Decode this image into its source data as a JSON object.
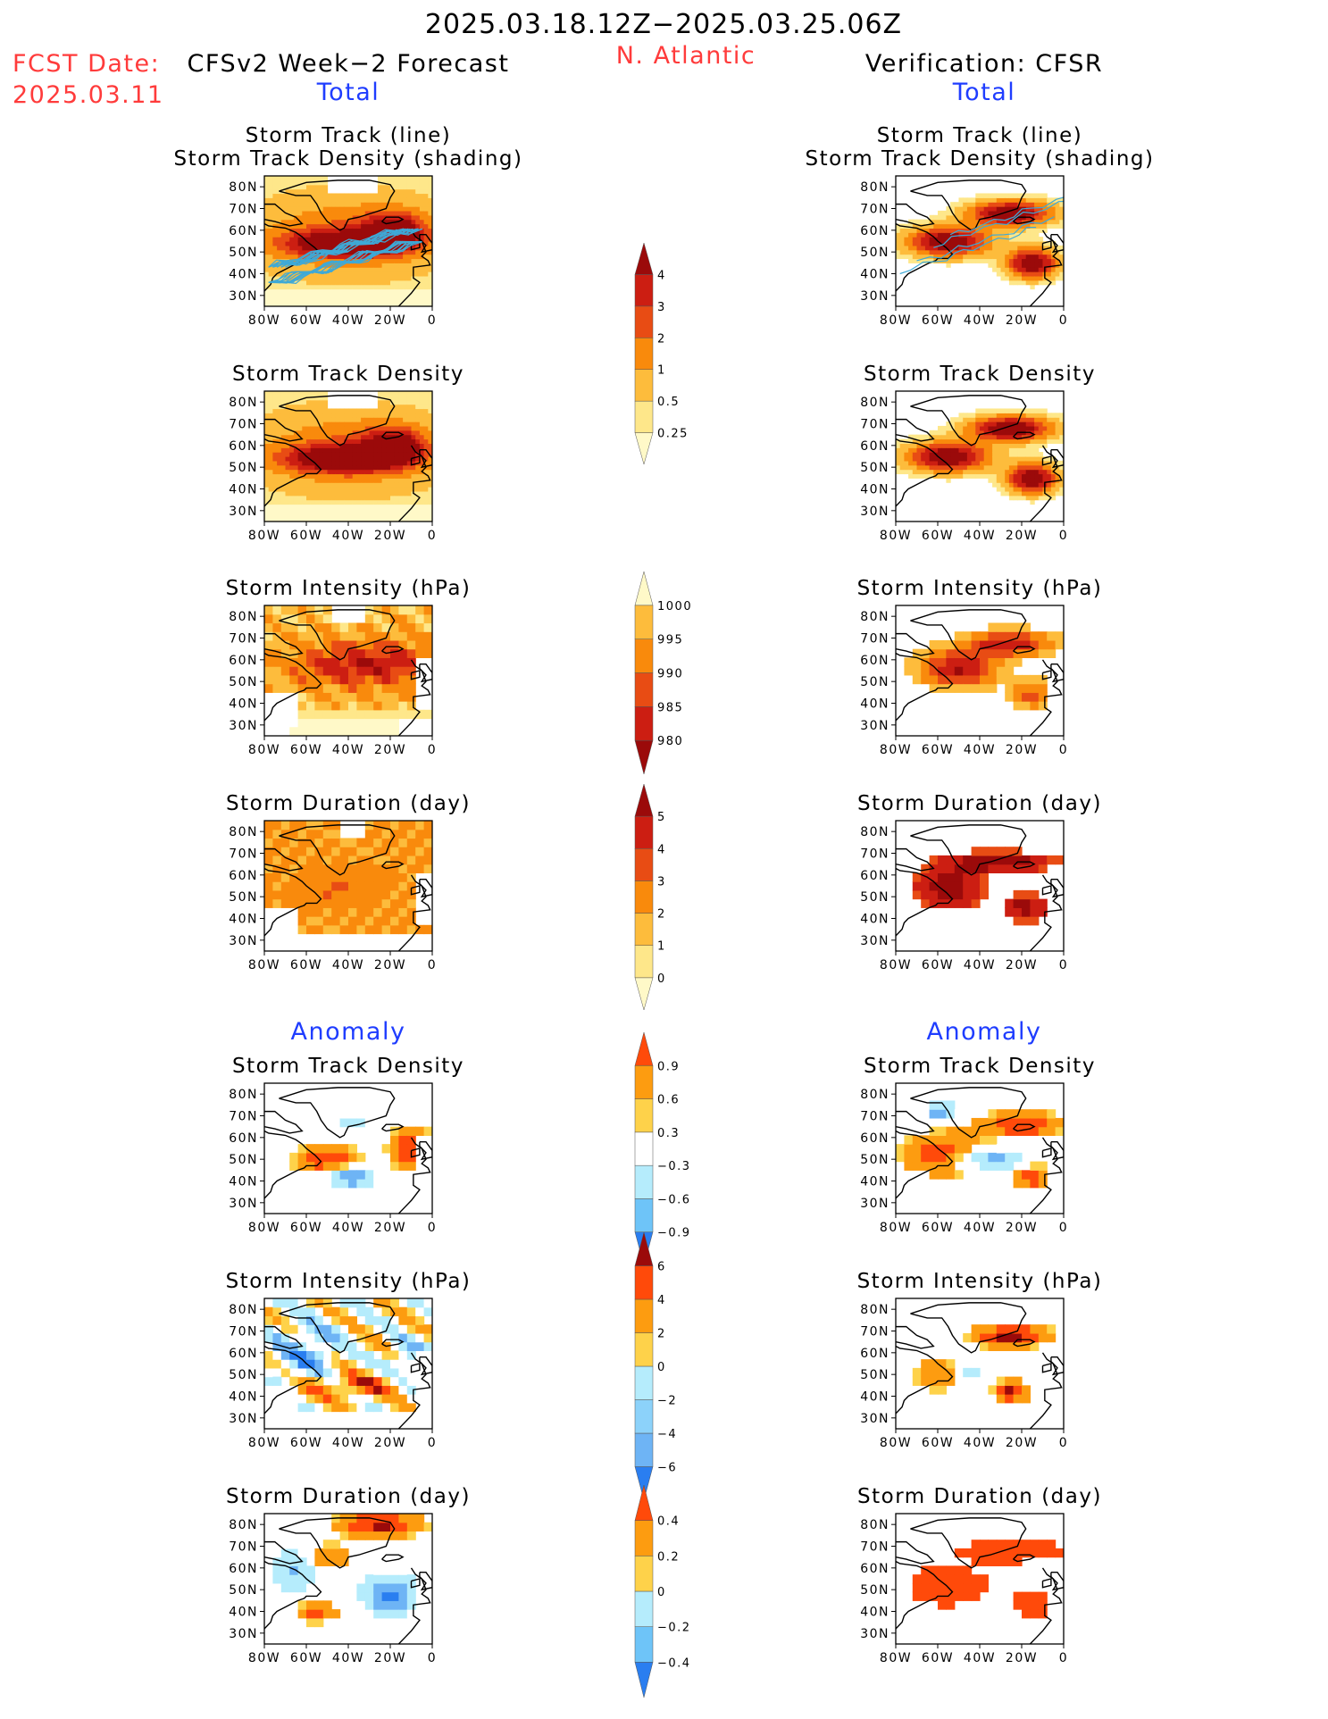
{
  "header": {
    "date_range": "2025.03.18.12Z−2025.03.25.06Z",
    "fcst_label": "FCST Date:",
    "fcst_date": "2025.03.11",
    "left_title": "CFSv2 Week−2 Forecast",
    "region": "N. Atlantic",
    "right_title": "Verification: CFSR",
    "total_left": "Total",
    "total_right": "Total",
    "anomaly_left": "Anomaly",
    "anomaly_right": "Anomaly"
  },
  "colors": {
    "title_red": "#ff3b3b",
    "title_blue": "#1f3dff",
    "track_line": "#3fa9d6"
  },
  "chart_data": {
    "type": "heatmap",
    "region": "N. Atlantic",
    "axes": {
      "xticks": [
        "80W",
        "60W",
        "40W",
        "20W",
        "0"
      ],
      "yticks": [
        "80N",
        "70N",
        "60N",
        "50N",
        "40N",
        "30N"
      ],
      "lon_range": [
        -80,
        0
      ],
      "lat_range": [
        25,
        85
      ]
    },
    "panel_titles": {
      "track": [
        "Storm Track (line)",
        "Storm Track Density (shading)"
      ],
      "density": "Storm Track Density",
      "intensity": "Storm Intensity (hPa)",
      "duration": "Storm Duration (day)"
    },
    "colorbars": [
      {
        "name": "density",
        "levels": [
          "4",
          "3",
          "2",
          "1",
          "0.5",
          "0.25"
        ],
        "colors": [
          "#9b0a0a",
          "#cc1e12",
          "#e84c14",
          "#f98a0c",
          "#fdbc3c",
          "#fee78a",
          "#fff9c8"
        ]
      },
      {
        "name": "intensity",
        "levels": [
          "1000",
          "995",
          "990",
          "985",
          "980"
        ],
        "colors": [
          "#fff9c8",
          "#fdbc3c",
          "#f98a0c",
          "#e84c14",
          "#cc1e12",
          "#9b0a0a"
        ]
      },
      {
        "name": "duration",
        "levels": [
          "5",
          "4",
          "3",
          "2",
          "1",
          "0"
        ],
        "colors": [
          "#9b0a0a",
          "#cc1e12",
          "#e84c14",
          "#f98a0c",
          "#fdbc3c",
          "#fee78a",
          "#fff9c8"
        ]
      },
      {
        "name": "density_anomaly",
        "levels": [
          "0.9",
          "0.6",
          "0.3",
          "−0.3",
          "−0.6",
          "−0.9"
        ],
        "colors": [
          "#ff4a0a",
          "#fd9c10",
          "#fed24a",
          "#ffffff",
          "#b5ecfc",
          "#6ec4f8",
          "#2a7ef0"
        ]
      },
      {
        "name": "intensity_anomaly",
        "levels": [
          "6",
          "4",
          "2",
          "0",
          "−2",
          "−4",
          "−6"
        ],
        "colors": [
          "#9b0a0a",
          "#ff4a0a",
          "#fd9c10",
          "#fed24a",
          "#b5ecfc",
          "#8cd2fa",
          "#6eb4f5",
          "#2a7ef0"
        ]
      },
      {
        "name": "duration_anomaly",
        "levels": [
          "0.4",
          "0.2",
          "0",
          "−0.2",
          "−0.4"
        ],
        "colors": [
          "#ff4a0a",
          "#fd9c10",
          "#fed24a",
          "#b5ecfc",
          "#6ec4f8",
          "#2a7ef0"
        ]
      }
    ],
    "panels": [
      {
        "side": "forecast",
        "field": "track+density"
      },
      {
        "side": "forecast",
        "field": "density"
      },
      {
        "side": "forecast",
        "field": "intensity"
      },
      {
        "side": "forecast",
        "field": "duration"
      },
      {
        "side": "forecast",
        "field": "density_anomaly"
      },
      {
        "side": "forecast",
        "field": "intensity_anomaly"
      },
      {
        "side": "forecast",
        "field": "duration_anomaly"
      },
      {
        "side": "verification",
        "field": "track+density"
      },
      {
        "side": "verification",
        "field": "density"
      },
      {
        "side": "verification",
        "field": "intensity"
      },
      {
        "side": "verification",
        "field": "duration"
      },
      {
        "side": "verification",
        "field": "density_anomaly"
      },
      {
        "side": "verification",
        "field": "intensity_anomaly"
      },
      {
        "side": "verification",
        "field": "duration_anomaly"
      }
    ]
  }
}
